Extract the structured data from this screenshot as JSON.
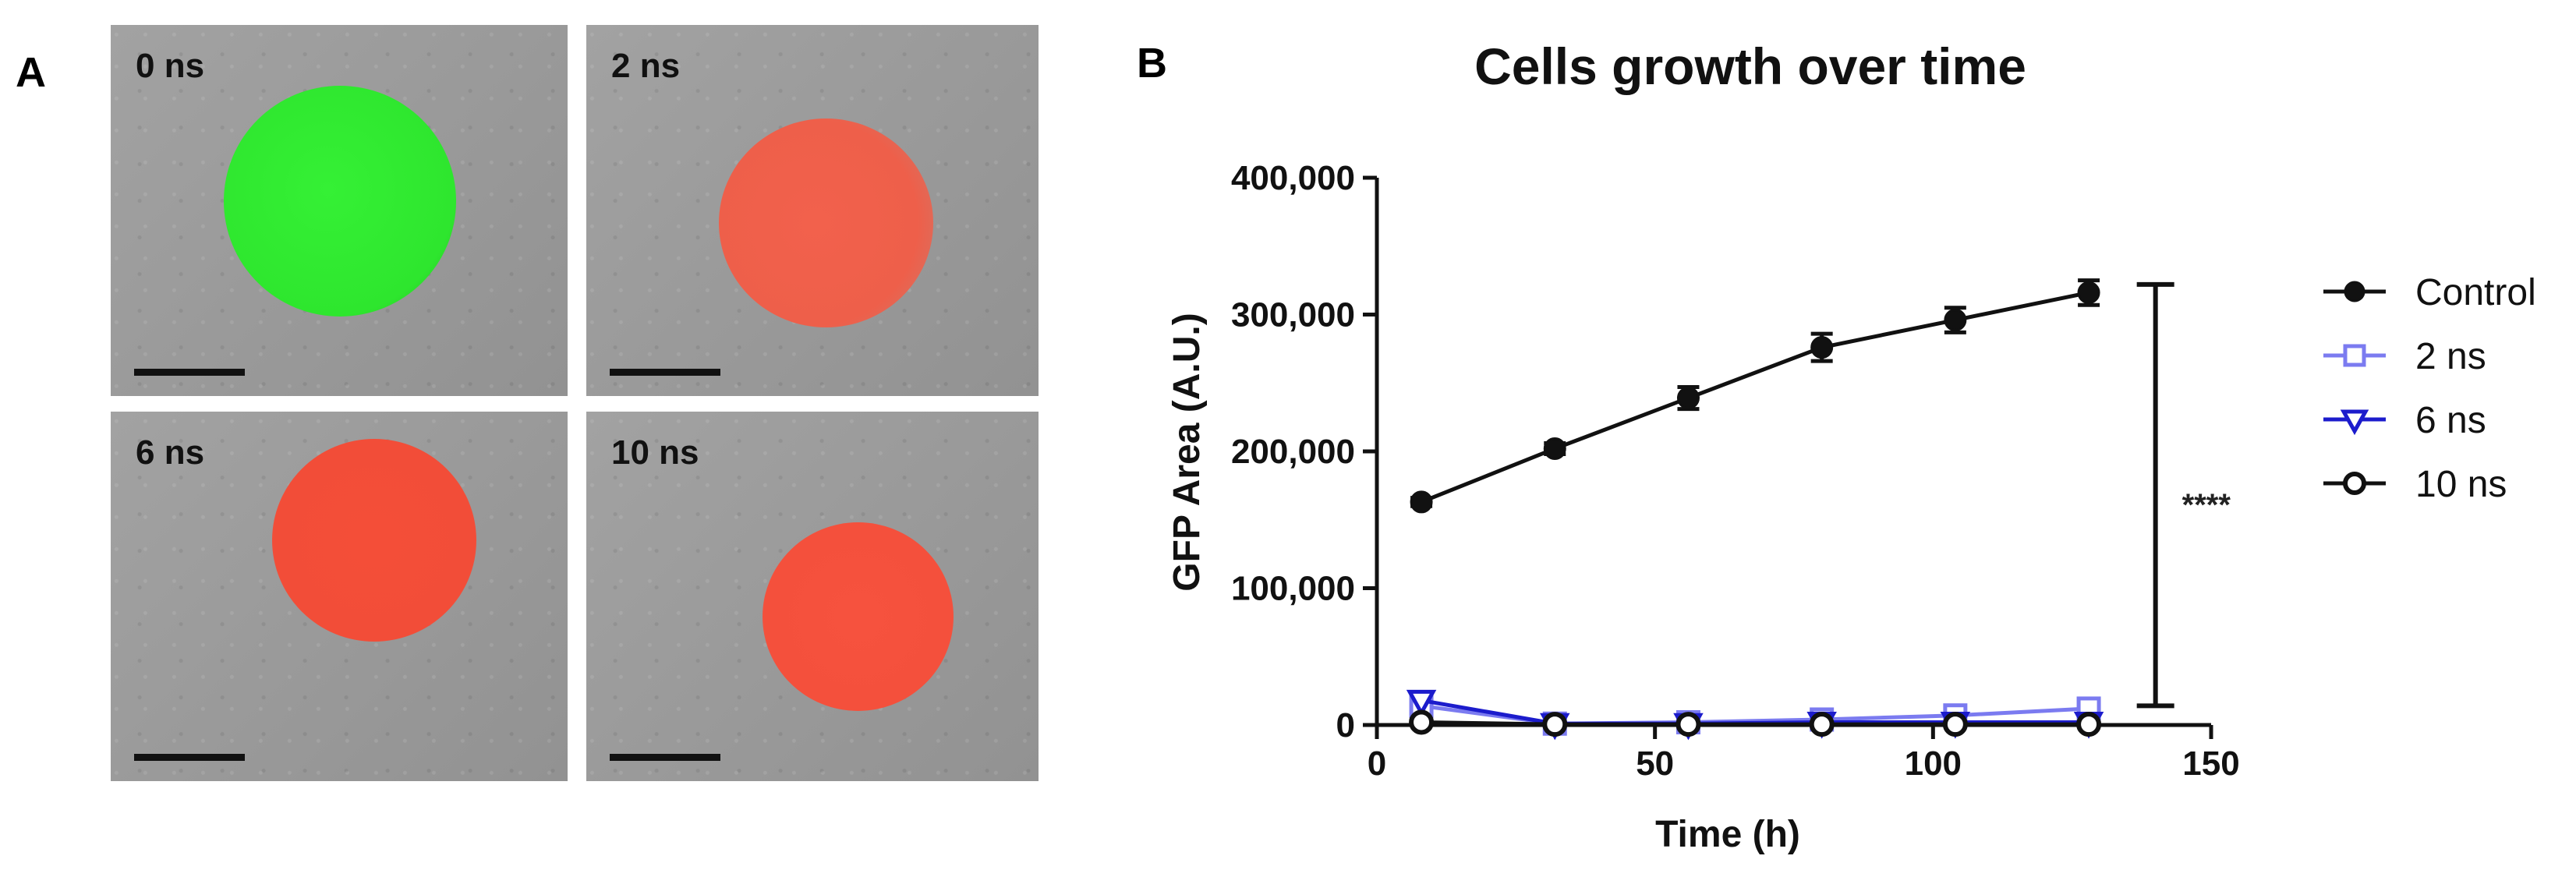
{
  "panel_a": {
    "letter": "A",
    "images": [
      {
        "label": "0 ns",
        "cell_color": "#2ee62e"
      },
      {
        "label": "2 ns",
        "cell_color": "#f0604a"
      },
      {
        "label": "6 ns",
        "cell_color": "#f24d38"
      },
      {
        "label": "10 ns",
        "cell_color": "#f4503c"
      }
    ]
  },
  "panel_b": {
    "letter": "B",
    "significance": "****"
  },
  "chart_data": {
    "type": "line",
    "title": "Cells growth over time",
    "xlabel": "Time (h)",
    "ylabel": "GFP Area (A.U.)",
    "xlim": [
      0,
      150
    ],
    "ylim": [
      0,
      400000
    ],
    "xticks": [
      0,
      50,
      100,
      150
    ],
    "yticks": [
      0,
      100000,
      200000,
      300000,
      400000
    ],
    "ytick_labels": [
      "0",
      "100,000",
      "200,000",
      "300,000",
      "400,000"
    ],
    "x": [
      8,
      32,
      56,
      80,
      104,
      128
    ],
    "series": [
      {
        "name": "Control",
        "color": "#111111",
        "marker": "filled-circle",
        "values": [
          163000,
          202000,
          239000,
          276000,
          296000,
          316000
        ],
        "errors": [
          3000,
          4000,
          8000,
          10000,
          9000,
          9000
        ]
      },
      {
        "name": "2 ns",
        "color": "#7b7bf0",
        "marker": "open-square",
        "values": [
          14000,
          1000,
          2000,
          4000,
          7000,
          12000
        ],
        "errors": [
          0,
          0,
          0,
          0,
          0,
          0
        ]
      },
      {
        "name": "6 ns",
        "color": "#1c1ccc",
        "marker": "open-triangle-down",
        "values": [
          18000,
          1000,
          1000,
          2000,
          2000,
          2000
        ],
        "errors": [
          0,
          0,
          0,
          0,
          0,
          0
        ]
      },
      {
        "name": "10 ns",
        "color": "#111111",
        "marker": "open-circle",
        "values": [
          2000,
          500,
          500,
          500,
          500,
          500
        ],
        "errors": [
          0,
          0,
          0,
          0,
          0,
          0
        ]
      }
    ],
    "significance_bar": {
      "x": 140,
      "y_low": 14000,
      "y_high": 322000,
      "label": "****"
    },
    "legend_position": "right"
  }
}
